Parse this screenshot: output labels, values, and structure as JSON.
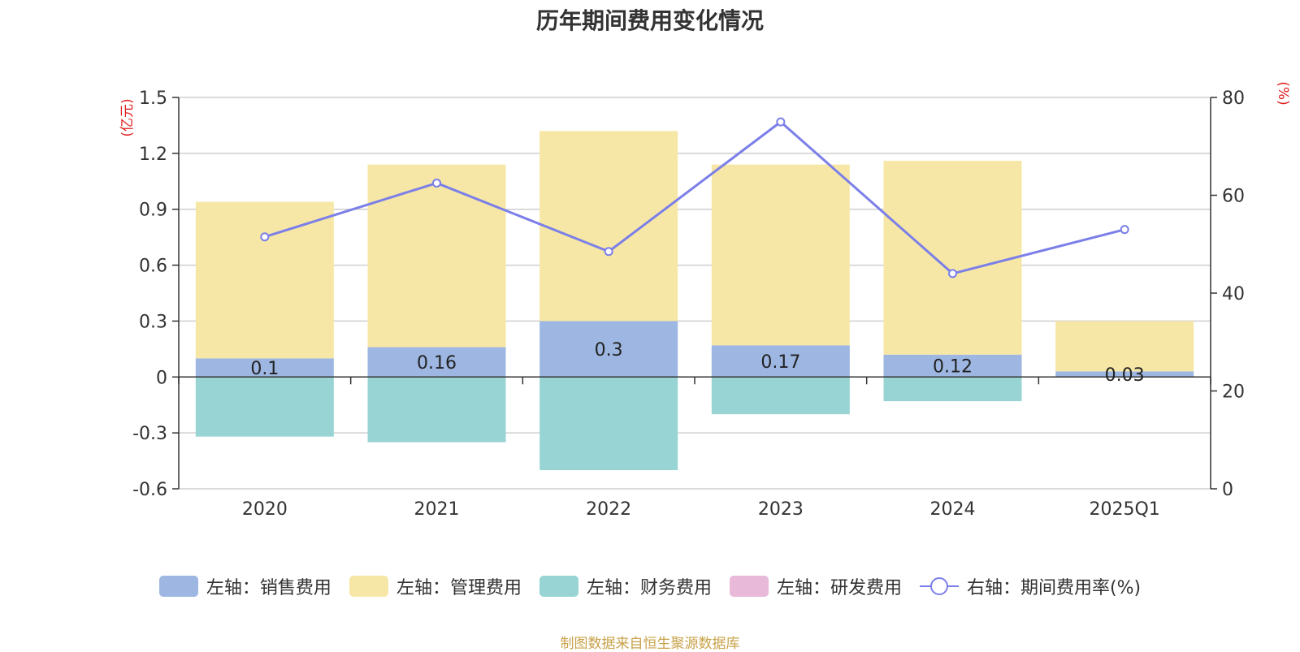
{
  "chart_data": {
    "type": "bar",
    "title": "历年期间费用变化情况",
    "left_axis_unit": "(亿元)",
    "right_axis_unit": "(%)",
    "categories": [
      "2020",
      "2021",
      "2022",
      "2023",
      "2024",
      "2025Q1"
    ],
    "left_ylim": [
      -0.6,
      1.5
    ],
    "left_ticks": [
      "1.5",
      "1.2",
      "0.9",
      "0.6",
      "0.3",
      "0",
      "-0.3",
      "-0.6"
    ],
    "right_ylim": [
      0,
      80
    ],
    "right_ticks": [
      "80",
      "60",
      "40",
      "20",
      "0"
    ],
    "series": [
      {
        "name": "左轴：销售费用",
        "axis": "left",
        "stack": true,
        "color": "#9db7e2",
        "values": [
          0.1,
          0.16,
          0.3,
          0.17,
          0.12,
          0.03
        ],
        "labels": [
          "0.1",
          "0.16",
          "0.3",
          "0.17",
          "0.12",
          "0.03"
        ]
      },
      {
        "name": "左轴：管理费用",
        "axis": "left",
        "stack": true,
        "color": "#f7e7a6",
        "values": [
          0.84,
          0.98,
          1.02,
          0.97,
          1.04,
          0.27
        ]
      },
      {
        "name": "左轴：财务费用",
        "axis": "left",
        "stack": true,
        "color": "#98d4d4",
        "values": [
          -0.32,
          -0.35,
          -0.5,
          -0.2,
          -0.13,
          0
        ]
      },
      {
        "name": "左轴：研发费用",
        "axis": "left",
        "stack": true,
        "color": "#e8b9d9",
        "values": [
          0,
          0,
          0,
          0,
          0,
          0
        ]
      },
      {
        "name": "右轴：期间费用率(%)",
        "axis": "right",
        "type": "line",
        "color": "#7b7fe8",
        "values": [
          51.5,
          62.5,
          48.5,
          75,
          44,
          53
        ]
      }
    ]
  },
  "source": "制图数据来自恒生聚源数据库"
}
